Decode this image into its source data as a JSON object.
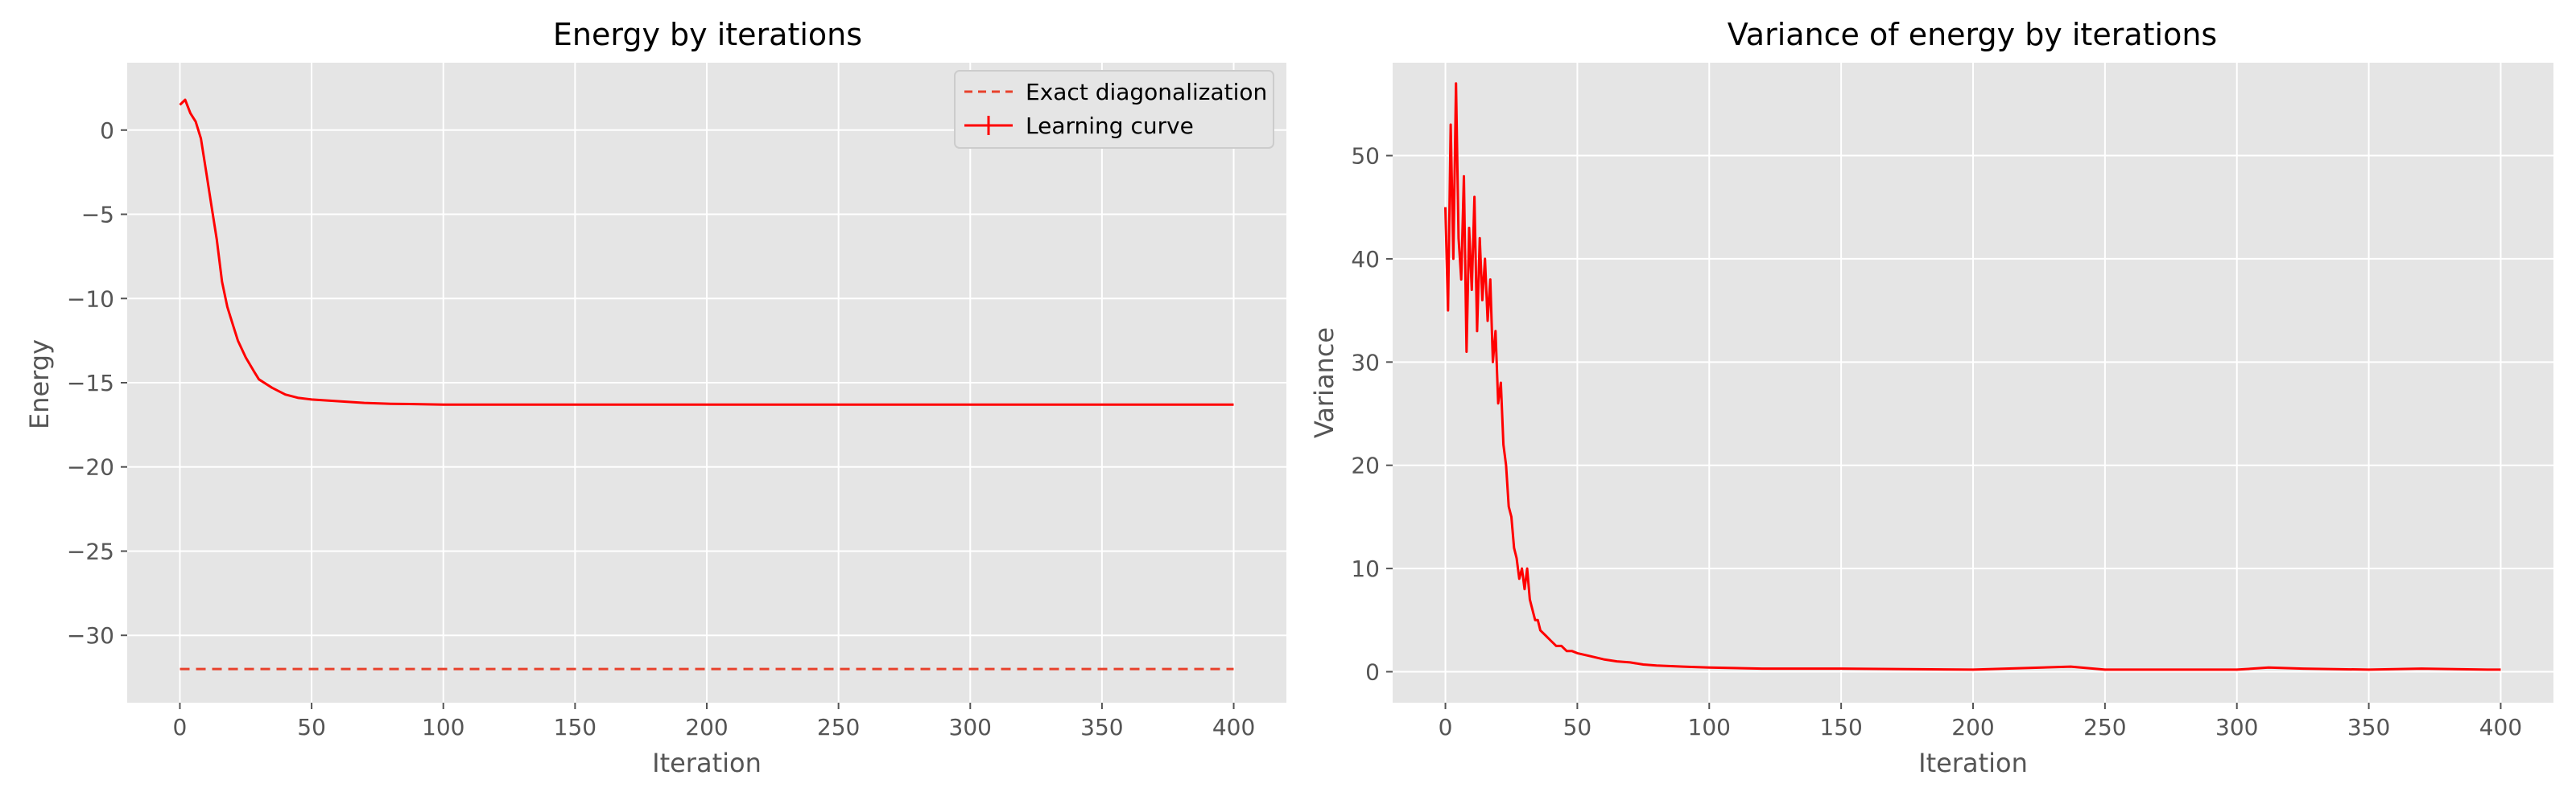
{
  "figure": {
    "background": "#ffffff",
    "axes_background": "#e5e5e5",
    "grid_color": "#ffffff",
    "tick_color": "#555555",
    "series_color": "#ff0000",
    "reference_color": "#e8412c"
  },
  "chart_data": [
    {
      "type": "line",
      "title": "Energy by iterations",
      "xlabel": "Iteration",
      "ylabel": "Energy",
      "xlim": [
        -20,
        420
      ],
      "ylim": [
        -34,
        4
      ],
      "xticks": [
        0,
        50,
        100,
        150,
        200,
        250,
        300,
        350,
        400
      ],
      "yticks": [
        0,
        -5,
        -10,
        -15,
        -20,
        -25,
        -30
      ],
      "xtick_labels": [
        "0",
        "50",
        "100",
        "150",
        "200",
        "250",
        "300",
        "350",
        "400"
      ],
      "ytick_labels": [
        "0",
        "−5",
        "−10",
        "−15",
        "−20",
        "−25",
        "−30"
      ],
      "grid": true,
      "legend_position": "top-right",
      "legend": [
        "Exact diagonalization",
        "Learning curve"
      ],
      "series": [
        {
          "name": "Exact diagonalization",
          "style": "dashed",
          "x": [
            0,
            400
          ],
          "y": [
            -32.0,
            -32.0
          ]
        },
        {
          "name": "Learning curve",
          "style": "solid",
          "x": [
            0,
            2,
            4,
            6,
            8,
            10,
            12,
            14,
            16,
            18,
            20,
            22,
            25,
            28,
            30,
            35,
            40,
            45,
            50,
            60,
            70,
            80,
            100,
            150,
            200,
            250,
            300,
            350,
            400
          ],
          "y": [
            1.5,
            1.8,
            1.0,
            0.5,
            -0.5,
            -2.5,
            -4.5,
            -6.5,
            -9.0,
            -10.5,
            -11.5,
            -12.5,
            -13.5,
            -14.3,
            -14.8,
            -15.3,
            -15.7,
            -15.9,
            -16.0,
            -16.1,
            -16.2,
            -16.25,
            -16.3,
            -16.3,
            -16.3,
            -16.3,
            -16.3,
            -16.3,
            -16.3
          ]
        }
      ]
    },
    {
      "type": "line",
      "title": "Variance of energy by iterations",
      "xlabel": "Iteration",
      "ylabel": "Variance",
      "xlim": [
        -20,
        420
      ],
      "ylim": [
        -3,
        59
      ],
      "xticks": [
        0,
        50,
        100,
        150,
        200,
        250,
        300,
        350,
        400
      ],
      "yticks": [
        0,
        10,
        20,
        30,
        40,
        50
      ],
      "xtick_labels": [
        "0",
        "50",
        "100",
        "150",
        "200",
        "250",
        "300",
        "350",
        "400"
      ],
      "ytick_labels": [
        "0",
        "10",
        "20",
        "30",
        "40",
        "50"
      ],
      "grid": true,
      "series": [
        {
          "style": "solid",
          "x": [
            0,
            1,
            2,
            3,
            4,
            5,
            6,
            7,
            8,
            9,
            10,
            11,
            12,
            13,
            14,
            15,
            16,
            17,
            18,
            19,
            20,
            21,
            22,
            23,
            24,
            25,
            26,
            27,
            28,
            29,
            30,
            31,
            32,
            33,
            34,
            35,
            36,
            38,
            40,
            42,
            44,
            46,
            48,
            50,
            55,
            60,
            65,
            70,
            75,
            80,
            90,
            100,
            120,
            150,
            200,
            237,
            250,
            300,
            312,
            325,
            350,
            370,
            395,
            400
          ],
          "y": [
            45,
            35,
            53,
            40,
            57,
            42,
            38,
            48,
            31,
            43,
            37,
            46,
            33,
            42,
            36,
            40,
            34,
            38,
            30,
            33,
            26,
            28,
            22,
            20,
            16,
            15,
            12,
            11,
            9,
            10,
            8,
            10,
            7,
            6,
            5,
            5,
            4,
            3.5,
            3,
            2.5,
            2.5,
            2,
            2,
            1.8,
            1.5,
            1.2,
            1.0,
            0.9,
            0.7,
            0.6,
            0.5,
            0.4,
            0.3,
            0.3,
            0.2,
            0.5,
            0.2,
            0.2,
            0.4,
            0.3,
            0.2,
            0.3,
            0.2,
            0.2
          ]
        }
      ]
    }
  ]
}
